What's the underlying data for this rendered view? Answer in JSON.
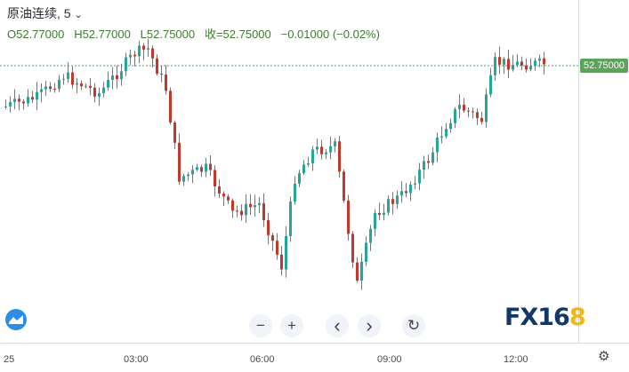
{
  "legend": {
    "symbol": "原油连续, 5",
    "open": "O52.77000",
    "high": "H52.77000",
    "low": "L52.75000",
    "close": "收=52.75000",
    "change": "−0.01000 (−0.02%)"
  },
  "price_axis": {
    "last_price": "52.75000"
  },
  "time_axis": {
    "ticks": [
      "25",
      "03:00",
      "06:00",
      "09:00",
      "12:00"
    ]
  },
  "controls": {
    "zoom_out": "−",
    "zoom_in": "+",
    "scroll_left": "‹",
    "scroll_right": "›",
    "reset": "↻"
  },
  "brand": {
    "text": "FX16",
    "highlight": "8"
  },
  "colors": {
    "up": "#26a69a",
    "down": "#c0392b",
    "grid_dotted": "#4a9e6a",
    "brand_navy": "#12376b",
    "brand_gold": "#f2b517"
  },
  "chart_data": {
    "type": "candlestick",
    "last": 52.75,
    "candle_count": 120
  }
}
